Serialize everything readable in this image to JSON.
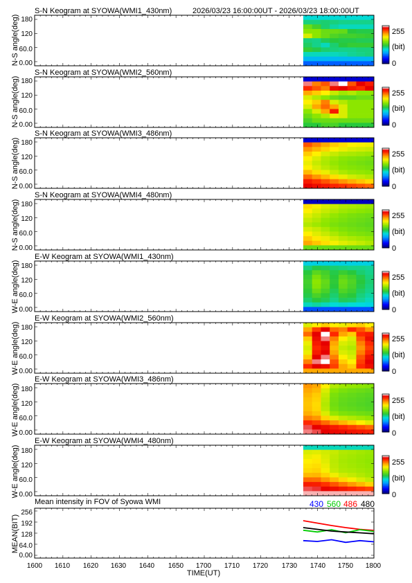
{
  "header_range": "2026/03/23 16:00:00UT - 2026/03/23 18:00:00UT",
  "colors": {
    "line_430": "#0000ff",
    "line_560": "#00cc00",
    "line_486": "#ff0000",
    "line_480": "#000000",
    "panel_bg": "#ffffff"
  },
  "colorbar": {
    "max_label": "255",
    "unit_label": "(bit)",
    "min_label": "0"
  },
  "chart_data": [
    {
      "type": "heatmap",
      "id": "sn_430",
      "title": "S-N Keogram at SYOWA(WMI1_430nm)",
      "ylabel": "N-S angle(deg)",
      "yticks": [
        "180",
        "120",
        "60.0",
        "0.00"
      ],
      "ylim": [
        0,
        180
      ],
      "xlim": [
        1600,
        1800
      ],
      "data_start_ut": 1735,
      "data_end_ut": 1800,
      "dominant_level": "mid",
      "rows": [
        [
          96,
          96,
          96,
          96,
          96,
          96,
          96,
          96
        ],
        [
          110,
          110,
          112,
          110,
          108,
          108,
          108,
          108
        ],
        [
          140,
          128,
          112,
          104,
          100,
          100,
          100,
          100
        ],
        [
          150,
          150,
          140,
          140,
          138,
          120,
          118,
          118
        ],
        [
          170,
          150,
          140,
          132,
          128,
          128,
          126,
          124
        ],
        [
          110,
          108,
          116,
          120,
          118,
          118,
          116,
          116
        ],
        [
          114,
          108,
          100,
          112,
          120,
          124,
          124,
          124
        ],
        [
          124,
          118,
          112,
          110,
          108,
          108,
          110,
          110
        ],
        [
          100,
          100,
          100,
          100,
          102,
          106,
          108,
          110
        ],
        [
          80,
          80,
          80,
          80,
          80,
          80,
          80,
          80
        ],
        [
          54,
          54,
          54,
          54,
          54,
          54,
          54,
          54
        ]
      ]
    },
    {
      "type": "heatmap",
      "id": "sn_560",
      "title": "S-N Keogram at SYOWA(WMI2_560nm)",
      "ylabel": "N-S angle(deg)",
      "yticks": [
        "180",
        "120",
        "60.0",
        "0.00"
      ],
      "ylim": [
        0,
        180
      ],
      "xlim": [
        1600,
        1800
      ],
      "data_start_ut": 1735,
      "data_end_ut": 1800,
      "dominant_level": "mid-high",
      "rows": [
        [
          20,
          20,
          20,
          20,
          20,
          20,
          20,
          20
        ],
        [
          250,
          210,
          220,
          250,
          255,
          220,
          245,
          235
        ],
        [
          230,
          220,
          210,
          240,
          245,
          235,
          230,
          245
        ],
        [
          200,
          190,
          180,
          165,
          155,
          160,
          150,
          150
        ],
        [
          170,
          160,
          150,
          140,
          135,
          135,
          140,
          140
        ],
        [
          180,
          190,
          210,
          170,
          160,
          150,
          150,
          150
        ],
        [
          170,
          200,
          215,
          200,
          170,
          150,
          150,
          150
        ],
        [
          150,
          170,
          200,
          235,
          170,
          150,
          150,
          150
        ],
        [
          140,
          150,
          160,
          175,
          170,
          150,
          150,
          150
        ],
        [
          130,
          140,
          140,
          140,
          140,
          140,
          140,
          140
        ],
        [
          120,
          120,
          130,
          130,
          120,
          120,
          120,
          120
        ]
      ]
    },
    {
      "type": "heatmap",
      "id": "sn_486",
      "title": "S-N Keogram at SYOWA(WMI3_486nm)",
      "ylabel": "N-S angle(deg)",
      "yticks": [
        "180",
        "120",
        "60.0",
        "0.00"
      ],
      "ylim": [
        0,
        180
      ],
      "xlim": [
        1600,
        1800
      ],
      "data_start_ut": 1735,
      "data_end_ut": 1800,
      "dominant_level": "mid-high",
      "rows": [
        [
          20,
          20,
          20,
          20,
          20,
          20,
          20,
          20
        ],
        [
          220,
          210,
          200,
          190,
          185,
          180,
          178,
          176
        ],
        [
          205,
          196,
          188,
          180,
          175,
          170,
          168,
          166
        ],
        [
          190,
          180,
          170,
          165,
          160,
          158,
          156,
          154
        ],
        [
          180,
          170,
          160,
          155,
          150,
          148,
          146,
          144
        ],
        [
          175,
          165,
          158,
          152,
          148,
          145,
          143,
          141
        ],
        [
          180,
          170,
          162,
          156,
          150,
          148,
          146,
          144
        ],
        [
          195,
          185,
          175,
          165,
          158,
          154,
          152,
          150
        ],
        [
          215,
          205,
          195,
          185,
          175,
          168,
          164,
          160
        ],
        [
          235,
          228,
          220,
          212,
          205,
          198,
          192,
          186
        ],
        [
          245,
          240,
          236,
          232,
          228,
          224,
          220,
          216
        ]
      ]
    },
    {
      "type": "heatmap",
      "id": "sn_480",
      "title": "S-N Keogram at SYOWA(WMI4_480nm)",
      "ylabel": "N-S angle(deg)",
      "yticks": [
        "180",
        "120",
        "60.0",
        "0.00"
      ],
      "ylim": [
        0,
        180
      ],
      "xlim": [
        1600,
        1800
      ],
      "data_start_ut": 1735,
      "data_end_ut": 1800,
      "dominant_level": "mid",
      "rows": [
        [
          15,
          15,
          15,
          15,
          15,
          15,
          15,
          15
        ],
        [
          185,
          178,
          170,
          165,
          160,
          158,
          156,
          154
        ],
        [
          180,
          172,
          165,
          160,
          155,
          152,
          150,
          148
        ],
        [
          172,
          165,
          158,
          152,
          148,
          145,
          143,
          141
        ],
        [
          165,
          160,
          152,
          148,
          145,
          142,
          140,
          138
        ],
        [
          160,
          155,
          150,
          145,
          142,
          140,
          138,
          136
        ],
        [
          170,
          165,
          158,
          150,
          146,
          143,
          141,
          139
        ],
        [
          180,
          172,
          165,
          158,
          152,
          148,
          146,
          144
        ],
        [
          190,
          182,
          175,
          168,
          162,
          158,
          155,
          152
        ],
        [
          200,
          192,
          185,
          178,
          172,
          168,
          164,
          160
        ],
        [
          140,
          140,
          140,
          140,
          140,
          140,
          140,
          140
        ]
      ]
    },
    {
      "type": "heatmap",
      "id": "ew_430",
      "title": "E-W Keogram at SYOWA(WMI1_430nm)",
      "ylabel": "W-E angle(deg)",
      "yticks": [
        "180",
        "120",
        "60.0",
        "0.00"
      ],
      "ylim": [
        0,
        180
      ],
      "xlim": [
        1600,
        1800
      ],
      "data_start_ut": 1735,
      "data_end_ut": 1800,
      "dominant_level": "mid",
      "rows": [
        [
          90,
          90,
          90,
          90,
          90,
          90,
          90,
          90
        ],
        [
          110,
          118,
          116,
          112,
          110,
          108,
          108,
          106
        ],
        [
          120,
          135,
          128,
          118,
          125,
          120,
          112,
          108
        ],
        [
          125,
          145,
          132,
          120,
          135,
          128,
          118,
          110
        ],
        [
          128,
          150,
          138,
          122,
          140,
          132,
          120,
          112
        ],
        [
          126,
          148,
          136,
          120,
          138,
          130,
          118,
          110
        ],
        [
          122,
          140,
          130,
          116,
          132,
          126,
          114,
          108
        ],
        [
          118,
          130,
          122,
          112,
          124,
          120,
          110,
          104
        ],
        [
          112,
          120,
          116,
          108,
          116,
          114,
          106,
          100
        ],
        [
          100,
          104,
          100,
          96,
          98,
          96,
          94,
          92
        ],
        [
          50,
          50,
          50,
          50,
          50,
          50,
          50,
          50
        ]
      ]
    },
    {
      "type": "heatmap",
      "id": "ew_560",
      "title": "E-W Keogram at SYOWA(WMI2_560nm)",
      "ylabel": "W-E angle(deg)",
      "yticks": [
        "180",
        "120",
        "60.0",
        "0.00"
      ],
      "ylim": [
        0,
        180
      ],
      "xlim": [
        1600,
        1800
      ],
      "data_start_ut": 1735,
      "data_end_ut": 1800,
      "dominant_level": "high",
      "rows": [
        [
          170,
          180,
          190,
          180,
          175,
          185,
          190,
          180
        ],
        [
          200,
          225,
          245,
          215,
          210,
          230,
          220,
          205
        ],
        [
          215,
          245,
          255,
          230,
          200,
          190,
          230,
          235
        ],
        [
          190,
          240,
          250,
          210,
          180,
          170,
          220,
          240
        ],
        [
          175,
          235,
          245,
          200,
          170,
          165,
          210,
          230
        ],
        [
          170,
          230,
          240,
          195,
          165,
          160,
          205,
          225
        ],
        [
          175,
          235,
          245,
          200,
          170,
          165,
          210,
          230
        ],
        [
          190,
          245,
          250,
          210,
          180,
          170,
          220,
          240
        ],
        [
          210,
          250,
          255,
          220,
          190,
          180,
          225,
          245
        ],
        [
          230,
          245,
          240,
          225,
          200,
          190,
          230,
          240
        ],
        [
          200,
          200,
          200,
          200,
          200,
          200,
          200,
          200
        ]
      ]
    },
    {
      "type": "heatmap",
      "id": "ew_486",
      "title": "E-W Keogram at SYOWA(WMI3_486nm)",
      "ylabel": "W-E angle(deg)",
      "yticks": [
        "180",
        "120",
        "60.0",
        "0.00"
      ],
      "ylim": [
        0,
        180
      ],
      "xlim": [
        1600,
        1800
      ],
      "data_start_ut": 1735,
      "data_end_ut": 1800,
      "dominant_level": "mid-high",
      "rows": [
        [
          205,
          200,
          180,
          160,
          155,
          152,
          150,
          148
        ],
        [
          200,
          195,
          170,
          150,
          145,
          142,
          140,
          138
        ],
        [
          196,
          190,
          165,
          145,
          140,
          138,
          136,
          134
        ],
        [
          193,
          188,
          162,
          143,
          138,
          136,
          134,
          132
        ],
        [
          192,
          186,
          160,
          142,
          137,
          135,
          133,
          131
        ],
        [
          193,
          187,
          162,
          144,
          139,
          137,
          135,
          133
        ],
        [
          198,
          192,
          170,
          152,
          146,
          144,
          142,
          140
        ],
        [
          210,
          205,
          188,
          172,
          164,
          160,
          156,
          152
        ],
        [
          230,
          225,
          215,
          205,
          196,
          188,
          180,
          172
        ],
        [
          248,
          245,
          240,
          235,
          230,
          225,
          220,
          215
        ],
        [
          250,
          248,
          245,
          242,
          240,
          238,
          236,
          234
        ]
      ]
    },
    {
      "type": "heatmap",
      "id": "ew_480",
      "title": "E-W Keogram at SYOWA(WMI4_480nm)",
      "ylabel": "W-E angle(deg)",
      "yticks": [
        "180",
        "120",
        "60.0",
        "0.00"
      ],
      "ylim": [
        0,
        180
      ],
      "xlim": [
        1600,
        1800
      ],
      "data_start_ut": 1735,
      "data_end_ut": 1800,
      "dominant_level": "mid",
      "rows": [
        [
          100,
          100,
          100,
          100,
          100,
          100,
          100,
          100
        ],
        [
          170,
          172,
          168,
          165,
          160,
          158,
          156,
          154
        ],
        [
          175,
          178,
          170,
          163,
          158,
          156,
          154,
          152
        ],
        [
          180,
          182,
          172,
          162,
          157,
          155,
          153,
          151
        ],
        [
          183,
          185,
          175,
          163,
          158,
          156,
          154,
          152
        ],
        [
          186,
          188,
          178,
          165,
          160,
          158,
          156,
          154
        ],
        [
          195,
          196,
          188,
          176,
          168,
          164,
          160,
          156
        ],
        [
          215,
          214,
          205,
          195,
          186,
          178,
          170,
          164
        ],
        [
          235,
          234,
          228,
          220,
          212,
          204,
          196,
          188
        ],
        [
          248,
          247,
          244,
          240,
          236,
          232,
          228,
          224
        ],
        [
          252,
          252,
          252,
          252,
          252,
          252,
          252,
          252
        ]
      ]
    },
    {
      "type": "line",
      "id": "mean",
      "title": "Mean intensity in FOV of Syowa WMI",
      "ylabel": "MEAN(BIT)",
      "xlabel": "TIME(UT)",
      "yticks": [
        "256",
        "192",
        "128",
        "64.0",
        "0.00"
      ],
      "xticks": [
        "1600",
        "1610",
        "1620",
        "1630",
        "1640",
        "1650",
        "1700",
        "1710",
        "1720",
        "1730",
        "1740",
        "1750",
        "1800"
      ],
      "ylim": [
        0,
        256
      ],
      "legend": [
        "430",
        "560",
        "486",
        "480"
      ],
      "x_ut": [
        1735,
        1740,
        1745,
        1750,
        1755,
        1800
      ],
      "series": [
        {
          "name": "486",
          "values": [
            200,
            186,
            172,
            160,
            150,
            144
          ]
        },
        {
          "name": "560",
          "values": [
            145,
            135,
            148,
            130,
            148,
            138
          ]
        },
        {
          "name": "480",
          "values": [
            160,
            150,
            140,
            135,
            130,
            125
          ]
        },
        {
          "name": "430",
          "values": [
            85,
            80,
            90,
            75,
            85,
            78
          ]
        }
      ]
    }
  ]
}
